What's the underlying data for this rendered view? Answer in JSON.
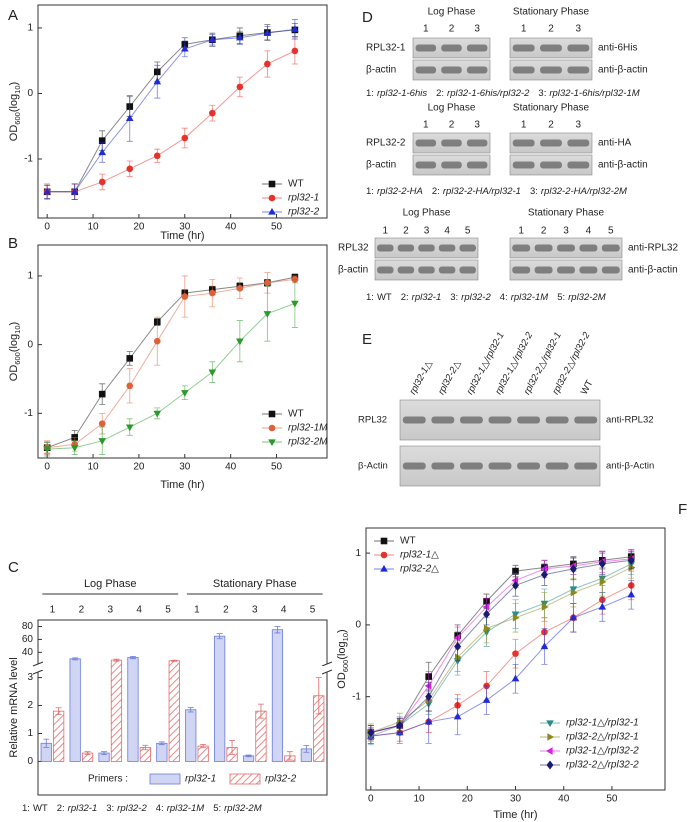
{
  "chart_data": [
    {
      "type": "line",
      "label": "A",
      "xlabel": "Time (hr)",
      "ylabel": [
        {
          "t": "OD"
        },
        {
          "t": "600",
          "sub": true
        },
        {
          "t": "(log"
        },
        {
          "t": "10",
          "sub": true
        },
        {
          "t": ")"
        }
      ],
      "x": [
        0,
        6,
        12,
        18,
        24,
        30,
        36,
        42,
        48,
        54
      ],
      "xlim": [
        -2,
        61
      ],
      "xticks": [
        0,
        10,
        20,
        30,
        40,
        50
      ],
      "ylim": [
        -1.9,
        1.35
      ],
      "yticks": [
        -1,
        0,
        1
      ],
      "legend": "bottom-right",
      "series": [
        {
          "name": "WT",
          "color": "#111111",
          "marker": "square",
          "italic": false,
          "values": [
            -1.5,
            -1.5,
            -0.72,
            -0.2,
            0.33,
            0.75,
            0.82,
            0.88,
            0.93,
            0.97
          ],
          "errors": [
            0.1,
            0.12,
            0.15,
            0.15,
            0.15,
            0.1,
            0.1,
            0.12,
            0.12,
            0.1
          ]
        },
        {
          "name": "rpl32-1",
          "color": "#e8312a",
          "marker": "circle",
          "italic": true,
          "values": [
            -1.5,
            -1.5,
            -1.35,
            -1.15,
            -0.95,
            -0.68,
            -0.3,
            0.1,
            0.45,
            0.65
          ],
          "errors": [
            0.12,
            0.12,
            0.12,
            0.12,
            0.1,
            0.15,
            0.12,
            0.15,
            0.2,
            0.2
          ]
        },
        {
          "name": "rpl32-2",
          "color": "#1f2bd6",
          "marker": "triangle",
          "italic": true,
          "values": [
            -1.5,
            -1.5,
            -0.9,
            -0.38,
            0.18,
            0.68,
            0.82,
            0.85,
            0.92,
            0.98
          ],
          "errors": [
            0.1,
            0.12,
            0.15,
            0.35,
            0.25,
            0.12,
            0.08,
            0.1,
            0.1,
            0.15
          ]
        }
      ]
    },
    {
      "type": "line",
      "label": "B",
      "xlabel": "Time (hr)",
      "ylabel": [
        {
          "t": "OD"
        },
        {
          "t": "600",
          "sub": true
        },
        {
          "t": "(log"
        },
        {
          "t": "10",
          "sub": true
        },
        {
          "t": ")"
        }
      ],
      "x": [
        0,
        6,
        12,
        18,
        24,
        30,
        36,
        42,
        48,
        54
      ],
      "xlim": [
        -2,
        61
      ],
      "xticks": [
        0,
        10,
        20,
        30,
        40,
        50
      ],
      "ylim": [
        -1.65,
        1.45
      ],
      "yticks": [
        -1,
        0,
        1
      ],
      "legend": "bottom-right",
      "series": [
        {
          "name": "WT",
          "color": "#111111",
          "marker": "square",
          "italic": false,
          "values": [
            -1.5,
            -1.35,
            -0.72,
            -0.2,
            0.33,
            0.75,
            0.8,
            0.85,
            0.9,
            0.98
          ],
          "errors": [
            0.08,
            0.1,
            0.15,
            0.1,
            0.05,
            0.05,
            0.05,
            0.05,
            0.05,
            0.05
          ]
        },
        {
          "name": "rpl32-1M",
          "color": "#e0603a",
          "marker": "circle",
          "italic": true,
          "values": [
            -1.5,
            -1.45,
            -1.15,
            -0.6,
            0.05,
            0.7,
            0.75,
            0.82,
            0.9,
            0.95
          ],
          "errors": [
            0.1,
            0.1,
            0.15,
            0.25,
            0.35,
            0.3,
            0.2,
            0.15,
            0.15,
            0.05
          ]
        },
        {
          "name": "rpl32-2M",
          "color": "#2a9a2a",
          "marker": "triangle-down",
          "italic": true,
          "values": [
            -1.52,
            -1.5,
            -1.4,
            -1.2,
            -1.0,
            -0.7,
            -0.4,
            0.05,
            0.45,
            0.6
          ],
          "errors": [
            0.1,
            0.1,
            0.2,
            0.12,
            0.08,
            0.1,
            0.15,
            0.3,
            0.4,
            0.35
          ]
        }
      ]
    },
    {
      "type": "bar",
      "label": "C",
      "ylabel": "Relative mRNA level",
      "groups": [
        "Log Phase",
        "Stationary Phase"
      ],
      "categories": [
        "1",
        "2",
        "3",
        "4",
        "5",
        "1",
        "2",
        "3",
        "4",
        "5"
      ],
      "ylim": [
        -1.2,
        90
      ],
      "ybreak": [
        3.2,
        22
      ],
      "yticks": [
        0,
        1,
        2,
        3,
        40,
        60,
        80
      ],
      "legend_title": "Primers :",
      "series": [
        {
          "name": "rpl32-1",
          "color": "#6b7bd8",
          "hatch": false,
          "values": [
            0.65,
            30,
            0.3,
            32,
            0.65,
            1.85,
            65,
            0.2,
            75,
            0.45
          ],
          "errors": [
            0.15,
            1.5,
            0.05,
            1.8,
            0.05,
            0.08,
            4,
            0.03,
            5,
            0.12
          ]
        },
        {
          "name": "rpl32-2",
          "color": "#e06b6b",
          "hatch": true,
          "values": [
            1.8,
            0.3,
            28,
            0.5,
            27,
            0.55,
            0.5,
            1.8,
            0.2,
            2.35
          ],
          "errors": [
            0.12,
            0.05,
            1.5,
            0.08,
            0.8,
            0.06,
            0.25,
            0.25,
            0.15,
            0.65
          ]
        }
      ],
      "footnote": [
        {
          "key": "1:",
          "label": "WT",
          "italic": false
        },
        {
          "key": "2:",
          "label": "rpl32-1",
          "italic": true
        },
        {
          "key": "3:",
          "label": "rpl32-2",
          "italic": true
        },
        {
          "key": "4:",
          "label": "rpl32-1M",
          "italic": true
        },
        {
          "key": "5:",
          "label": "rpl32-2M",
          "italic": true
        }
      ]
    },
    {
      "type": "line",
      "label": "F",
      "xlabel": "Time (hr)",
      "ylabel": [
        {
          "t": "OD"
        },
        {
          "t": "600",
          "sub": true
        },
        {
          "t": "(log"
        },
        {
          "t": "10",
          "sub": true
        },
        {
          "t": ")"
        }
      ],
      "x": [
        0,
        6,
        12,
        18,
        24,
        30,
        36,
        42,
        48,
        54
      ],
      "xlim": [
        -1,
        61
      ],
      "xticks": [
        0,
        10,
        20,
        30,
        40,
        50
      ],
      "ylim": [
        -2.3,
        1.35
      ],
      "yticks": [
        -1,
        0,
        1
      ],
      "series": [
        {
          "name": "WT",
          "color": "#111111",
          "marker": "square",
          "italic": false,
          "legend": "top-left",
          "values": [
            -1.5,
            -1.4,
            -0.72,
            -0.15,
            0.33,
            0.75,
            0.8,
            0.85,
            0.9,
            0.95
          ],
          "errors": [
            0.1,
            0.1,
            0.2,
            0.15,
            0.1,
            0.08,
            0.1,
            0.1,
            0.12,
            0.1
          ]
        },
        {
          "name": "rpl32-1△",
          "color": "#e8312a",
          "marker": "circle",
          "italic": true,
          "legend": "top-left",
          "values": [
            -1.55,
            -1.5,
            -1.35,
            -1.12,
            -0.85,
            -0.4,
            -0.1,
            0.1,
            0.35,
            0.55
          ],
          "errors": [
            0.1,
            0.12,
            0.15,
            0.15,
            0.2,
            0.2,
            0.2,
            0.2,
            0.2,
            0.2
          ]
        },
        {
          "name": "rpl32-2△",
          "color": "#1f2bd6",
          "marker": "triangle",
          "italic": true,
          "legend": "top-left",
          "values": [
            -1.55,
            -1.5,
            -1.35,
            -1.28,
            -1.05,
            -0.75,
            -0.3,
            0.1,
            0.25,
            0.42
          ],
          "errors": [
            0.1,
            0.15,
            0.3,
            0.25,
            0.2,
            0.2,
            0.25,
            0.2,
            0.2,
            0.2
          ]
        },
        {
          "name": "rpl32-1△/rpl32-1",
          "color": "#2a8a8a",
          "marker": "triangle-down",
          "italic": true,
          "legend": "bottom-right",
          "values": [
            -1.55,
            -1.4,
            -1.1,
            -0.5,
            -0.1,
            0.15,
            0.3,
            0.5,
            0.65,
            0.85
          ],
          "errors": [
            0.12,
            0.12,
            0.15,
            0.2,
            0.2,
            0.2,
            0.2,
            0.2,
            0.2,
            0.15
          ]
        },
        {
          "name": "rpl32-2△/rpl32-1",
          "color": "#8a8a1a",
          "marker": "triangle-right",
          "italic": true,
          "legend": "bottom-right",
          "values": [
            -1.5,
            -1.35,
            -1.05,
            -0.45,
            -0.05,
            0.1,
            0.25,
            0.45,
            0.6,
            0.8
          ],
          "errors": [
            0.12,
            0.12,
            0.15,
            0.2,
            0.2,
            0.2,
            0.2,
            0.2,
            0.2,
            0.15
          ]
        },
        {
          "name": "rpl32-1△/rpl32-2",
          "color": "#e020e0",
          "marker": "triangle-left",
          "italic": true,
          "legend": "bottom-right",
          "values": [
            -1.5,
            -1.4,
            -0.85,
            -0.18,
            0.25,
            0.62,
            0.78,
            0.82,
            0.88,
            0.92
          ],
          "errors": [
            0.1,
            0.1,
            0.2,
            0.15,
            0.12,
            0.1,
            0.12,
            0.12,
            0.15,
            0.12
          ]
        },
        {
          "name": "rpl32-2△/rpl32-2",
          "color": "#1a1a70",
          "marker": "diamond",
          "italic": true,
          "legend": "bottom-right",
          "values": [
            -1.5,
            -1.4,
            -1.0,
            -0.3,
            0.15,
            0.55,
            0.7,
            0.78,
            0.85,
            0.9
          ],
          "errors": [
            0.1,
            0.1,
            0.2,
            0.2,
            0.15,
            0.15,
            0.15,
            0.15,
            0.15,
            0.12
          ]
        }
      ]
    }
  ],
  "blots": {
    "D": {
      "letter": "D",
      "sections": [
        {
          "panels": [
            {
              "header": "Log Phase",
              "lanes": [
                "1",
                "2",
                "3"
              ]
            },
            {
              "header": "Stationary Phase",
              "lanes": [
                "1",
                "2",
                "3"
              ]
            }
          ],
          "rows": [
            {
              "label": "RPL32-1",
              "antibody": "anti-6His"
            },
            {
              "label": "β-actin",
              "antibody": "anti-β-actin"
            }
          ],
          "legend": [
            {
              "key": "1:",
              "label": "rpl32-1-6his",
              "italic": true
            },
            {
              "key": "2:",
              "label": "rpl32-1-6his/rpl32-2",
              "italic": true
            },
            {
              "key": "3:",
              "label": "rpl32-1-6his/rpl32-1M",
              "italic": true
            }
          ]
        },
        {
          "panels": [
            {
              "header": "Log Phase",
              "lanes": [
                "1",
                "2",
                "3"
              ]
            },
            {
              "header": "Stationary Phase",
              "lanes": [
                "1",
                "2",
                "3"
              ]
            }
          ],
          "rows": [
            {
              "label": "RPL32-2",
              "antibody": "anti-HA"
            },
            {
              "label": "β-actin",
              "antibody": "anti-β-actin"
            }
          ],
          "legend": [
            {
              "key": "1:",
              "label": "rpl32-2-HA",
              "italic": true
            },
            {
              "key": "2:",
              "label": "rpl32-2-HA/rpl32-1",
              "italic": true
            },
            {
              "key": "3:",
              "label": "rpl32-2-HA/rpl32-2M",
              "italic": true
            }
          ]
        },
        {
          "panels": [
            {
              "header": "Log Phase",
              "lanes": [
                "1",
                "2",
                "3",
                "4",
                "5"
              ]
            },
            {
              "header": "Stationary Phase",
              "lanes": [
                "1",
                "2",
                "3",
                "4",
                "5"
              ]
            }
          ],
          "rows": [
            {
              "label": "RPL32",
              "antibody": "anti-RPL32"
            },
            {
              "label": "β-actin",
              "antibody": "anti-β-actin"
            }
          ],
          "legend": [
            {
              "key": "1:",
              "label": "WT",
              "italic": false
            },
            {
              "key": "2:",
              "label": "rpl32-1",
              "italic": true
            },
            {
              "key": "3:",
              "label": "rpl32-2",
              "italic": true
            },
            {
              "key": "4:",
              "label": "rpl32-1M",
              "italic": true
            },
            {
              "key": "5:",
              "label": "rpl32-2M",
              "italic": true
            }
          ]
        }
      ]
    },
    "E": {
      "letter": "E",
      "lanes": [
        {
          "label": "rpl32-1△",
          "italic": true
        },
        {
          "label": "rpl32-2△",
          "italic": true
        },
        {
          "label": "rpl32-1△/rpl32-1",
          "italic": true
        },
        {
          "label": "rpl32-1△/rpl32-2",
          "italic": true
        },
        {
          "label": "rpl32-2△/rpl32-1",
          "italic": true
        },
        {
          "label": "rpl32-2△/rpl32-2",
          "italic": true
        },
        {
          "label": "WT",
          "italic": false
        }
      ],
      "rows": [
        {
          "label": "RPL32",
          "antibody": "anti-RPL32"
        },
        {
          "label": "β-Actin",
          "antibody": "anti-β-Actin"
        }
      ]
    }
  }
}
